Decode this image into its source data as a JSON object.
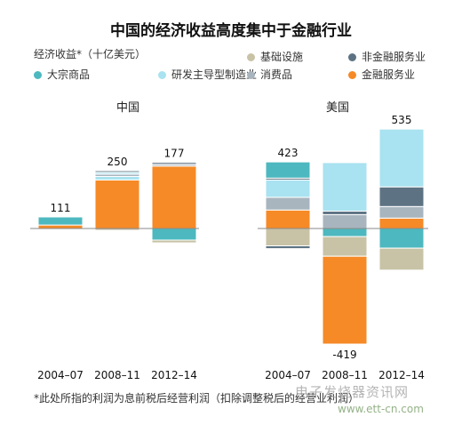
{
  "chart_data": {
    "type": "bar",
    "title": "中国的经济收益高度集中于金融行业",
    "ylabel": "经济收益*（十亿美元）",
    "legend": [
      {
        "name": "大宗商品",
        "color": "#4db8bf"
      },
      {
        "name": "基础设施",
        "color": "#c8c3a6"
      },
      {
        "name": "非金融服务业",
        "color": "#5d7383"
      },
      {
        "name": "研发主导型制造业",
        "color": "#a9e2f0"
      },
      {
        "name": "消费品",
        "color": "#a8b5bf"
      },
      {
        "name": "金融服务业",
        "color": "#f58a27"
      }
    ],
    "panels": [
      {
        "title": "中国",
        "categories": [
          "2004–07",
          "2008–11",
          "2012–14"
        ],
        "totals": [
          111,
          250,
          177
        ],
        "segments": [
          [
            {
              "series": "金融服务业",
              "value": 15
            },
            {
              "series": "大宗商品",
              "value": 35
            }
          ],
          [
            {
              "series": "金融服务业",
              "value": 210
            },
            {
              "series": "研发主导型制造业",
              "value": 15
            },
            {
              "series": "消费品",
              "value": 10
            },
            {
              "series": "研发主导型制造业",
              "value": 8
            },
            {
              "series": "非金融服务业",
              "value": 7
            },
            {
              "series": "基础设施",
              "value": -8
            }
          ],
          [
            {
              "series": "金融服务业",
              "value": 270
            },
            {
              "series": "消费品",
              "value": 8
            },
            {
              "series": "非金融服务业",
              "value": 8
            },
            {
              "series": "大宗商品",
              "value": -50
            },
            {
              "series": "基础设施",
              "value": -12
            }
          ]
        ]
      },
      {
        "title": "美国",
        "categories": [
          "2004–07",
          "2008–11",
          "2012–14"
        ],
        "totals": [
          423,
          -419,
          535
        ],
        "segments": [
          [
            {
              "series": "金融服务业",
              "value": 80
            },
            {
              "series": "消费品",
              "value": 55
            },
            {
              "series": "研发主导型制造业",
              "value": 75
            },
            {
              "series": "非金融服务业",
              "value": 8
            },
            {
              "series": "大宗商品",
              "value": 70
            },
            {
              "series": "基础设施",
              "value": -75
            },
            {
              "series": "非金融服务业",
              "value": -12
            }
          ],
          [
            {
              "series": "消费品",
              "value": 60
            },
            {
              "series": "非金融服务业",
              "value": 15
            },
            {
              "series": "研发主导型制造业",
              "value": 210
            },
            {
              "series": "大宗商品",
              "value": -35
            },
            {
              "series": "基础设施",
              "value": -85
            },
            {
              "series": "金融服务业",
              "value": -380
            }
          ],
          [
            {
              "series": "金融服务业",
              "value": 45
            },
            {
              "series": "消费品",
              "value": 50
            },
            {
              "series": "非金融服务业",
              "value": 85
            },
            {
              "series": "研发主导型制造业",
              "value": 250
            },
            {
              "series": "大宗商品",
              "value": -85
            },
            {
              "series": "基础设施",
              "value": -95
            }
          ]
        ]
      }
    ]
  },
  "footnote": "*此处所指的利润为息前税后经营利润（扣除调整税后的经营业利润）",
  "watermark": {
    "text": "电子发烧器资讯网",
    "url": "www.ett-cn.com"
  }
}
